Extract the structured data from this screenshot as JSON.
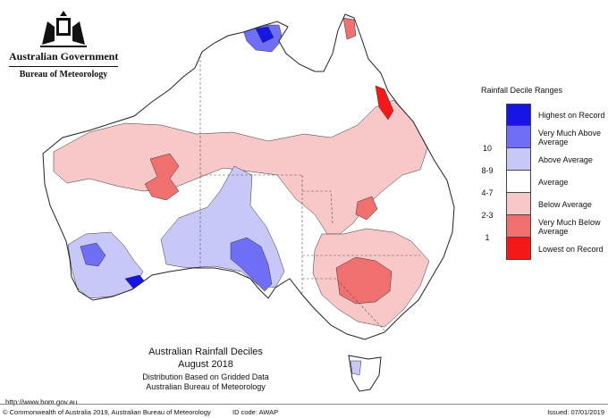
{
  "header": {
    "organisation": "Australian Government",
    "agency": "Bureau of Meteorology"
  },
  "legend": {
    "title": "Rainfall Decile Ranges",
    "items": [
      {
        "range": "",
        "label": "Highest on Record",
        "color": "#1515e6"
      },
      {
        "range": "10",
        "label": "Very Much Above Average",
        "color": "#6f6ff5"
      },
      {
        "range": "8-9",
        "label": "Above Average",
        "color": "#c8c8f8"
      },
      {
        "range": "4-7",
        "label": "Average",
        "color": "#ffffff"
      },
      {
        "range": "2-3",
        "label": "Below Average",
        "color": "#f8c8c8"
      },
      {
        "range": "1",
        "label": "Very Much Below Average",
        "color": "#f07070"
      },
      {
        "range": "",
        "label": "Lowest on Record",
        "color": "#f51818"
      }
    ]
  },
  "map": {
    "title": "Australian Rainfall Deciles",
    "period": "August 2018",
    "subtitle": "Distribution Based on Gridded Data",
    "source": "Australian Bureau of Meteorology"
  },
  "footer": {
    "url": "http://www.bom.gov.au",
    "copyright": "© Commonwealth of Australia 2019, Australian Bureau of Meteorology",
    "id_code": "ID code: AWAP",
    "issued": "Issued: 07/01/2019"
  }
}
